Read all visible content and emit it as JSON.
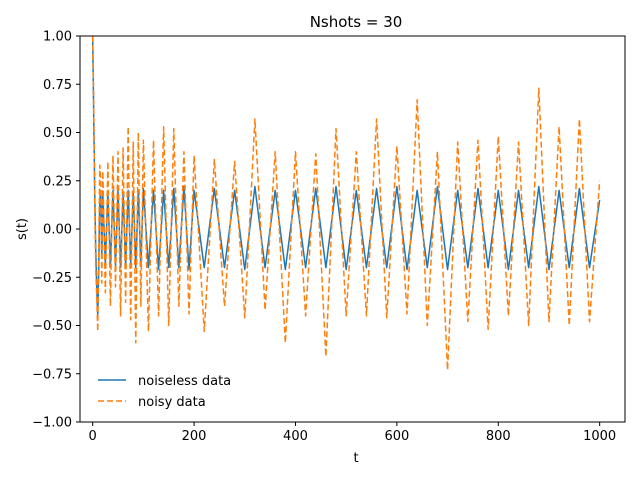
{
  "chart_data": {
    "type": "line",
    "title": "Nshots = 30",
    "xlabel": "t",
    "ylabel": "s(t)",
    "xlim": [
      -25,
      1050
    ],
    "ylim": [
      -1.0,
      1.0
    ],
    "xticks": [
      0,
      200,
      400,
      600,
      800,
      1000
    ],
    "xtick_labels": [
      "0",
      "200",
      "400",
      "600",
      "800",
      "1000"
    ],
    "yticks": [
      -1.0,
      -0.75,
      -0.5,
      -0.25,
      0.0,
      0.25,
      0.5,
      0.75,
      1.0
    ],
    "ytick_labels": [
      "−1.00",
      "−0.75",
      "−0.50",
      "−0.25",
      "0.00",
      "0.25",
      "0.50",
      "0.75",
      "1.00"
    ],
    "grid": false,
    "legend_position": "lower-left",
    "series": [
      {
        "name": "noiseless data",
        "color": "#1f77b4",
        "style": "solid",
        "x": [
          0,
          2,
          4,
          6,
          8,
          10,
          12,
          14,
          16,
          18,
          20,
          25,
          30,
          35,
          40,
          45,
          50,
          55,
          60,
          65,
          70,
          75,
          80,
          85,
          90,
          95,
          100,
          110,
          120,
          130,
          140,
          150,
          160,
          170,
          180,
          190,
          200,
          220,
          240,
          260,
          280,
          300,
          320,
          340,
          360,
          380,
          400,
          420,
          440,
          460,
          480,
          500,
          520,
          540,
          560,
          580,
          600,
          620,
          640,
          660,
          680,
          700,
          720,
          740,
          760,
          780,
          800,
          820,
          840,
          860,
          880,
          900,
          920,
          940,
          960,
          980,
          1000
        ],
        "y": [
          1.0,
          0.6,
          0.2,
          -0.1,
          -0.3,
          -0.45,
          -0.2,
          0.15,
          0.2,
          -0.15,
          0.18,
          -0.18,
          0.19,
          -0.2,
          0.2,
          -0.19,
          0.2,
          -0.2,
          0.18,
          -0.19,
          0.2,
          -0.18,
          0.19,
          -0.2,
          0.2,
          -0.19,
          0.21,
          -0.2,
          0.2,
          -0.21,
          0.2,
          -0.2,
          0.21,
          -0.2,
          0.22,
          -0.21,
          0.2,
          -0.2,
          0.21,
          -0.2,
          0.2,
          -0.21,
          0.22,
          -0.2,
          0.2,
          -0.21,
          0.2,
          -0.2,
          0.21,
          -0.2,
          0.22,
          -0.21,
          0.2,
          -0.2,
          0.21,
          -0.2,
          0.22,
          -0.21,
          0.2,
          -0.2,
          0.22,
          -0.21,
          0.2,
          -0.2,
          0.21,
          -0.2,
          0.2,
          -0.21,
          0.2,
          -0.2,
          0.22,
          -0.21,
          0.2,
          -0.2,
          0.21,
          -0.2,
          0.15
        ]
      },
      {
        "name": "noisy data",
        "color": "#ff7f0e",
        "style": "dashed",
        "x": [
          0,
          2,
          4,
          6,
          8,
          10,
          12,
          14,
          16,
          18,
          20,
          25,
          30,
          35,
          40,
          45,
          50,
          55,
          60,
          65,
          70,
          75,
          80,
          85,
          90,
          95,
          100,
          110,
          120,
          130,
          140,
          150,
          160,
          170,
          180,
          190,
          200,
          220,
          240,
          260,
          280,
          300,
          320,
          340,
          360,
          380,
          400,
          420,
          440,
          460,
          480,
          500,
          520,
          540,
          560,
          580,
          600,
          620,
          640,
          660,
          680,
          700,
          720,
          740,
          760,
          780,
          800,
          820,
          840,
          860,
          880,
          900,
          920,
          940,
          960,
          980,
          1000
        ],
        "y": [
          1.0,
          0.65,
          0.15,
          -0.2,
          -0.35,
          -0.53,
          -0.1,
          0.33,
          0.25,
          -0.28,
          0.3,
          -0.33,
          0.35,
          -0.4,
          0.38,
          -0.3,
          0.4,
          -0.45,
          0.42,
          -0.38,
          0.53,
          -0.47,
          0.45,
          -0.59,
          0.5,
          -0.4,
          0.46,
          -0.53,
          0.46,
          -0.45,
          0.53,
          -0.5,
          0.52,
          -0.4,
          0.4,
          -0.44,
          0.38,
          -0.53,
          0.36,
          -0.4,
          0.35,
          -0.46,
          0.57,
          -0.42,
          0.4,
          -0.59,
          0.4,
          -0.45,
          0.39,
          -0.66,
          0.52,
          -0.45,
          0.4,
          -0.45,
          0.57,
          -0.46,
          0.43,
          -0.44,
          0.67,
          -0.5,
          0.4,
          -0.73,
          0.45,
          -0.48,
          0.46,
          -0.52,
          0.48,
          -0.45,
          0.45,
          -0.5,
          0.73,
          -0.48,
          0.53,
          -0.5,
          0.57,
          -0.48,
          0.25
        ]
      }
    ]
  }
}
